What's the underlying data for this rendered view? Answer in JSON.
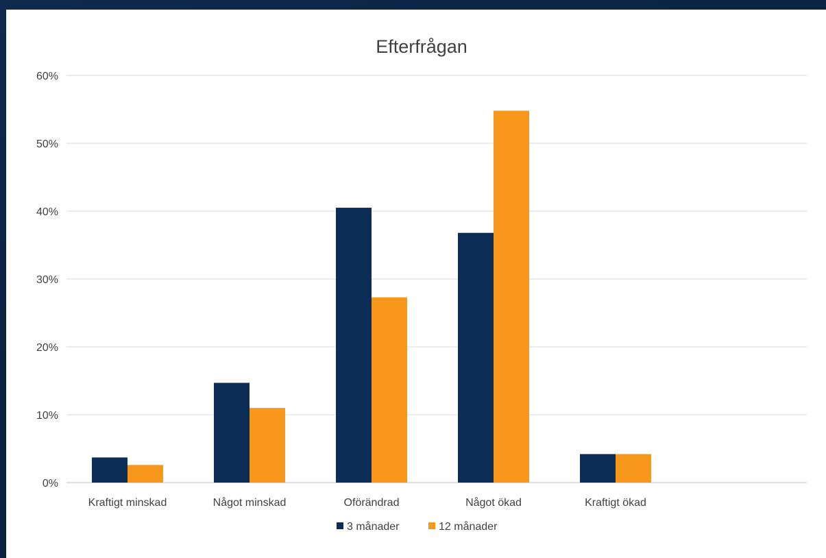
{
  "chart_data": {
    "type": "bar",
    "title": "Efterfrågan",
    "xlabel": "",
    "ylabel": "",
    "categories": [
      "Kraftigt minskad",
      "Något minskad",
      "Oförändrad",
      "Något ökad",
      "Kraftigt ökad"
    ],
    "series": [
      {
        "name": "3 månader",
        "color": "#0b2d55",
        "values": [
          3.7,
          14.7,
          40.5,
          36.8,
          4.2
        ]
      },
      {
        "name": "12 månader",
        "color": "#f7981d",
        "values": [
          2.6,
          11.0,
          27.3,
          54.8,
          4.2
        ]
      }
    ],
    "ylim": [
      0,
      60
    ],
    "yticks": [
      0,
      10,
      20,
      30,
      40,
      50,
      60
    ],
    "ytick_labels": [
      "0%",
      "10%",
      "20%",
      "30%",
      "40%",
      "50%",
      "60%"
    ],
    "grid": true,
    "legend": "bottom-center"
  }
}
